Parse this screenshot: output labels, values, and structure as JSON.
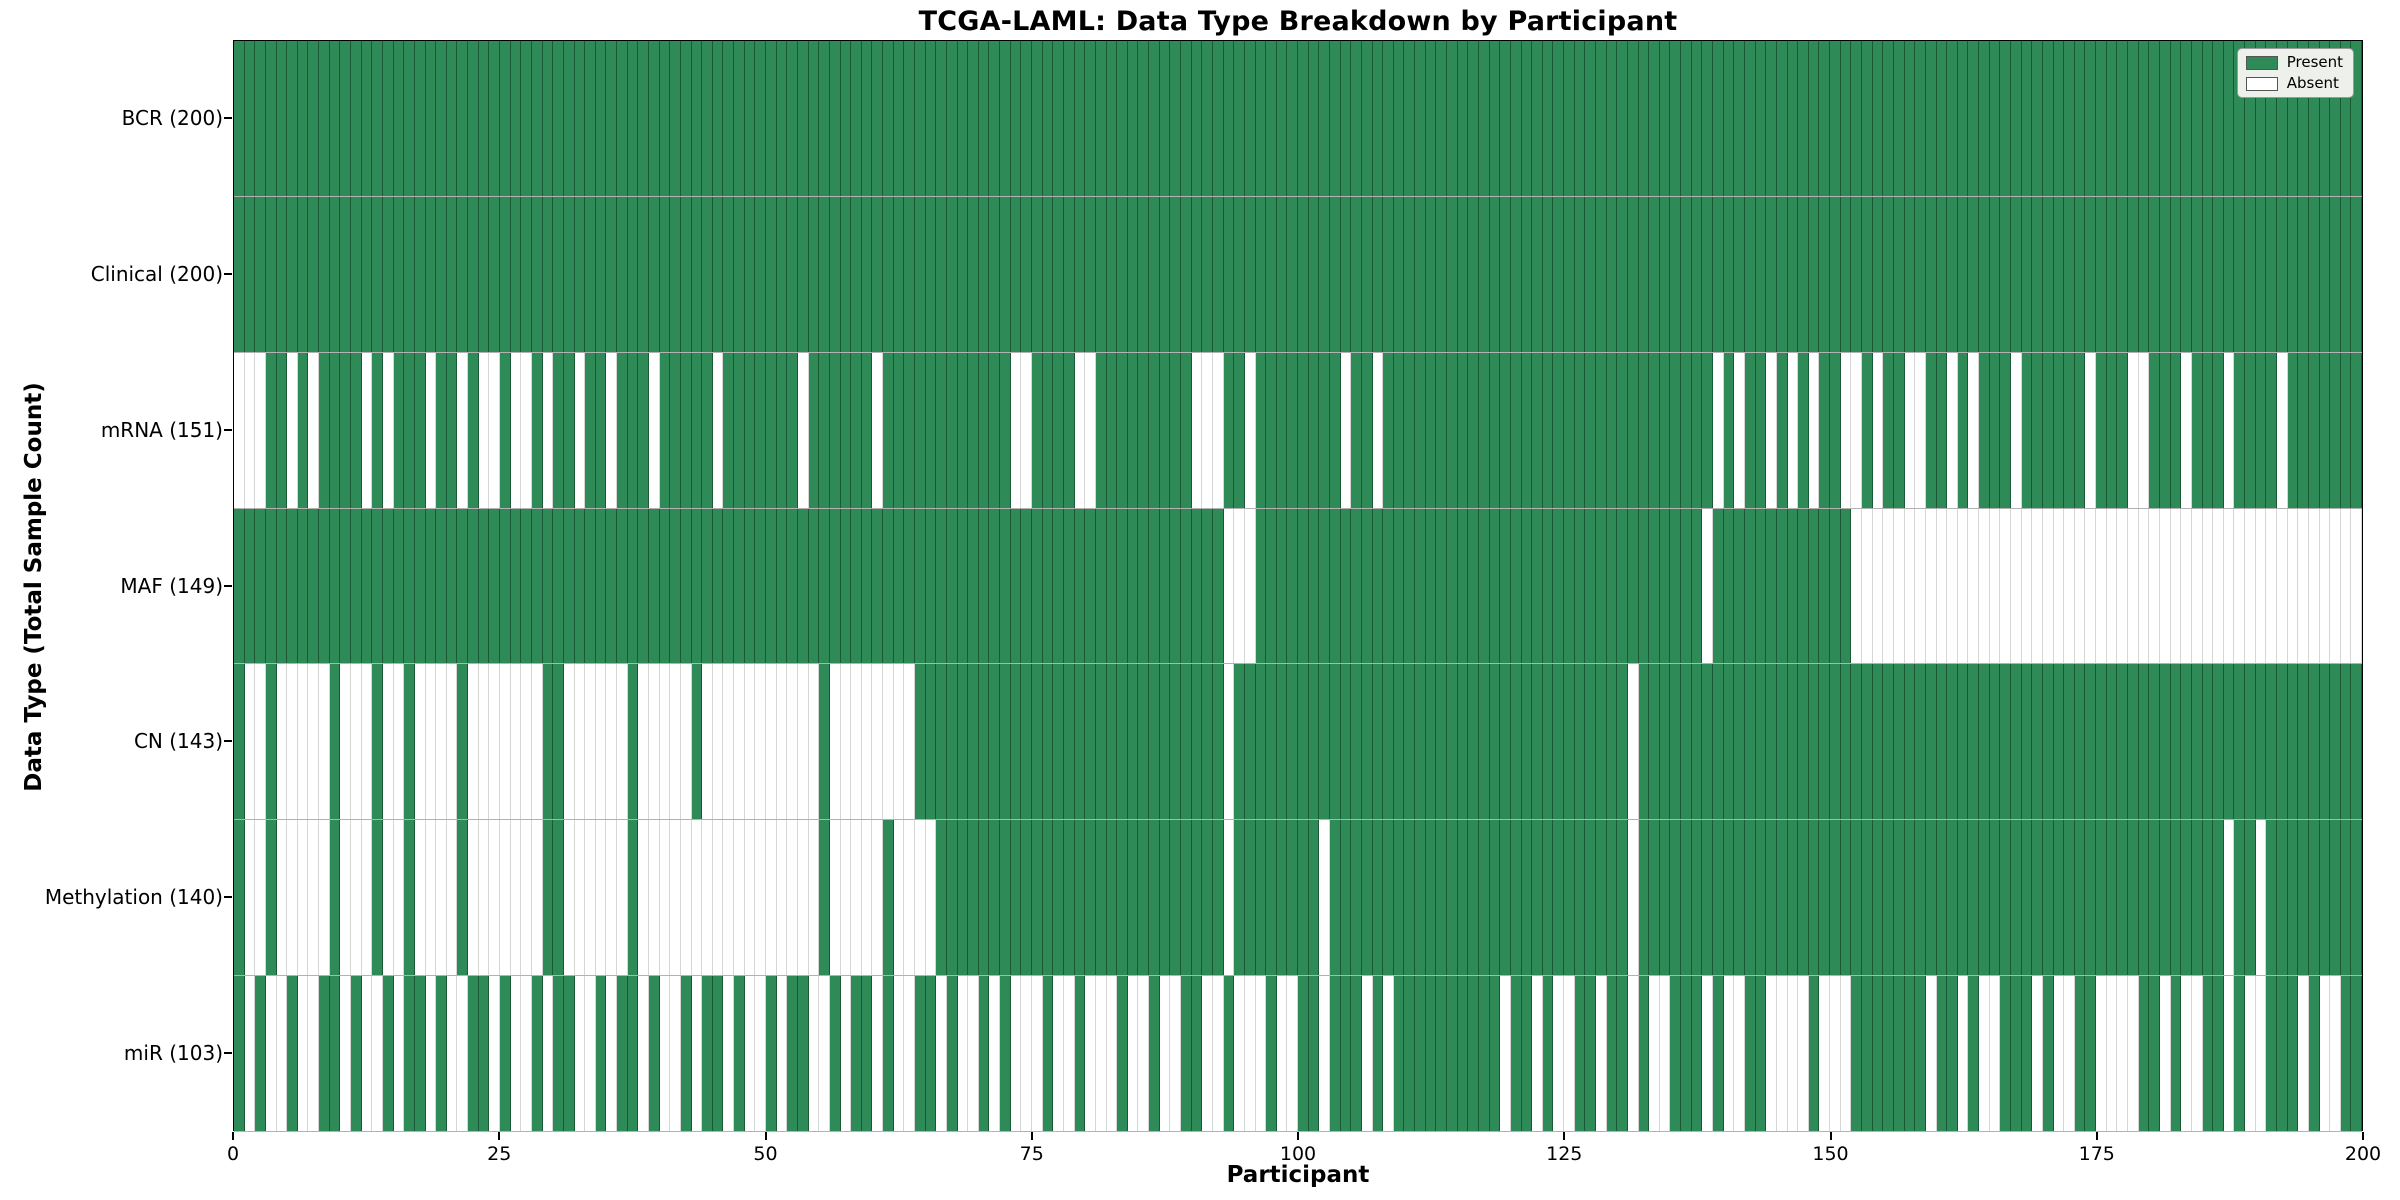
{
  "title": "TCGA-LAML: Data Type Breakdown by Participant",
  "axes": {
    "xlabel": "Participant",
    "ylabel": "Data Type (Total Sample Count)"
  },
  "legend": {
    "items": [
      {
        "label": "Present",
        "color": "#2e8b57"
      },
      {
        "label": "Absent",
        "color": "#ffffff"
      }
    ]
  },
  "colors": {
    "present": "#2e8b57",
    "absent": "#ffffff",
    "spine": "#000000"
  },
  "chart_data": {
    "type": "heatmap",
    "title": "TCGA-LAML: Data Type Breakdown by Participant",
    "xlabel": "Participant",
    "ylabel": "Data Type (Total Sample Count)",
    "x_min": 0,
    "x_max": 200,
    "x_ticks": [
      0,
      25,
      50,
      75,
      100,
      125,
      150,
      175,
      200
    ],
    "n_participants": 200,
    "cell_encoding": {
      "1": "Present",
      "0": "Absent"
    },
    "legend_position": "upper right",
    "rows": [
      {
        "label": "BCR (200)",
        "data_type": "BCR",
        "present_count": 200,
        "pattern": "11111111111111111111111111111111111111111111111111111111111111111111111111111111111111111111111111111111111111111111111111111111111111111111111111111111111111111111111111111111111111111111111111111111"
      },
      {
        "label": "Clinical (200)",
        "data_type": "Clinical",
        "present_count": 200,
        "pattern": "11111111111111111111111111111111111111111111111111111111111111111111111111111111111111111111111111111111111111111111111111111111111111111111111111111111111111111111111111111111111111111111111111111111"
      },
      {
        "label": "mRNA (151)",
        "data_type": "mRNA",
        "present_count": 151,
        "pattern": "00011010111101011101101001001011011011101111101111111011111101111111111110011110011111111100011011111111011011111111111111111111111111111110101101010110010110011010111011111101110011101110111101111111"
      },
      {
        "label": "MAF (149)",
        "data_type": "MAF",
        "present_count": 149,
        "pattern": "11111111111111111111111111111111111111111111111111111111111111111111111111111111111111111111100011111111111111111111111111111111111111111101111111111111000000000000000000000000000000000000000000000000"
      },
      {
        "label": "CN (143)",
        "data_type": "CN",
        "present_count": 143,
        "pattern": "10010000010001001000010000000110000001000001000000000001000000001111111111111111111111111111101111111111111111111111111111111111111011111111111111111111111111111111111111111111111111111111111111111111"
      },
      {
        "label": "Methylation (140)",
        "data_type": "Methylation",
        "present_count": 140,
        "pattern": "10010000010001001000010000000110000001000000000000000001000001000011111111111111111111111111101111111101111111111111111111111111111011111111111111111111111111111111111111111111111111111110110111111111"
      },
      {
        "label": "miR (103)",
        "data_type": "miR",
        "present_count": 103,
        "pattern": "10100100110100101101001101001011001011010010110100101100101101001101001010001001000100100110010001001101110101111111111011010011011010011101001100001000111111101101001110100110000110100110100111010011"
      }
    ]
  }
}
